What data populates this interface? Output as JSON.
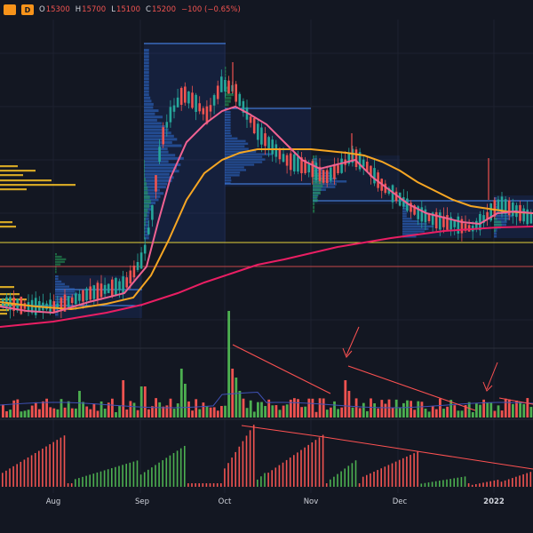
{
  "header": {
    "symbol_chip_color": "#f7931a",
    "interval_label": "D",
    "open_key": "O",
    "open_value": "15300",
    "high_key": "H",
    "high_value": "15700",
    "low_key": "L",
    "low_value": "15100",
    "close_key": "C",
    "close_value": "15200",
    "change": "−100 (−0.65%)"
  },
  "colors": {
    "background": "#131722",
    "up": "#26a69a",
    "up_volume": "#4caf50",
    "down": "#ef5350",
    "ma_fast": "#f06292",
    "ma_mid": "#f6a623",
    "ma_slow": "#e91e63",
    "profile": "#2962ff",
    "trendline": "#ff5252"
  },
  "x_axis": {
    "labels": [
      {
        "text": "Aug",
        "bold": false
      },
      {
        "text": "Sep",
        "bold": false
      },
      {
        "text": "Oct",
        "bold": false
      },
      {
        "text": "Nov",
        "bold": false
      },
      {
        "text": "Dec",
        "bold": false
      },
      {
        "text": "2022",
        "bold": true
      }
    ]
  },
  "chart_data": {
    "type": "candlestick",
    "title": "",
    "indicators": [
      "moving-average-fast",
      "moving-average-mid",
      "moving-average-slow",
      "volume",
      "volume-profile",
      "oscillator-histogram"
    ],
    "annotations": [
      "horizontal-level-yellow",
      "horizontal-level-red",
      "volume-trendlines",
      "volume-arrows",
      "oscillator-trendline"
    ],
    "grid": true
  }
}
